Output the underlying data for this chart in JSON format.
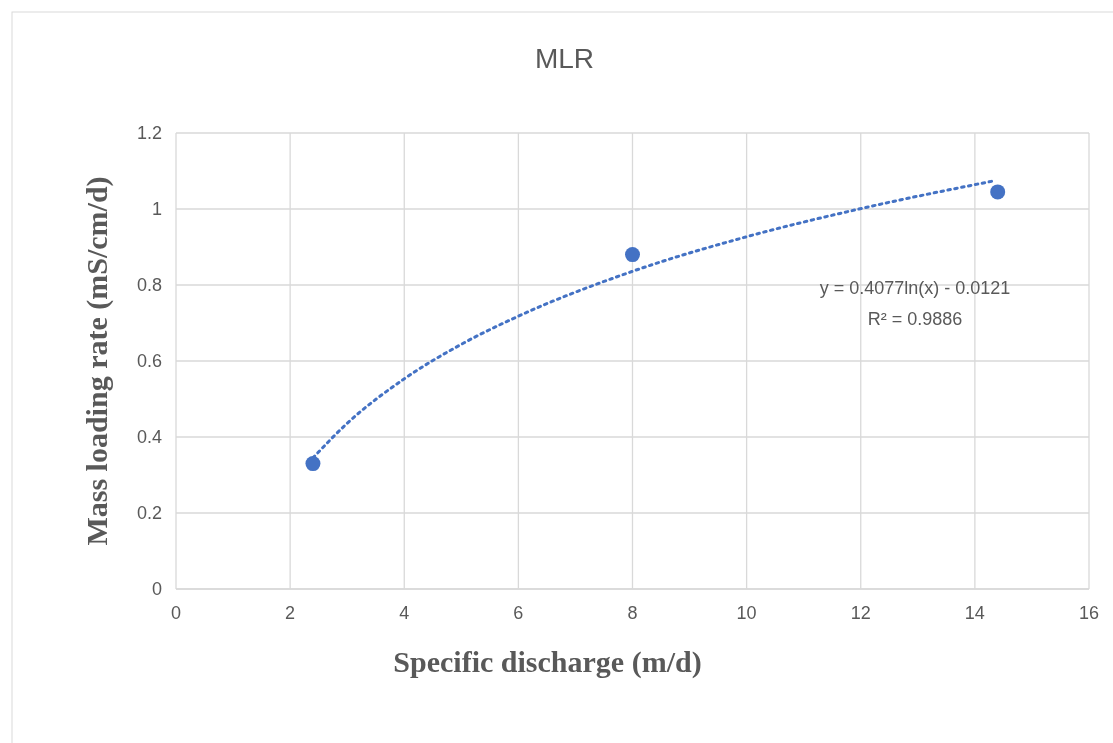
{
  "chart_data": {
    "type": "scatter",
    "title": "MLR",
    "xlabel": "Specific discharge (m/d)",
    "ylabel": "Mass loading rate (mS/cm/d)",
    "series": [
      {
        "color": "#4472c4",
        "x": [
          2.4,
          8,
          14.4
        ],
        "values": [
          0.33,
          0.88,
          1.045
        ],
        "marker": "circle"
      },
      {
        "type": "line",
        "color": "#4472c4",
        "line_style": "dotted",
        "x": [
          2.4,
          3,
          4,
          5,
          6,
          8,
          10,
          12,
          14.3
        ],
        "values": [
          0.345,
          0.436,
          0.553,
          0.644,
          0.718,
          0.836,
          0.927,
          1.001,
          1.073
        ]
      }
    ],
    "xlim": [
      0,
      16
    ],
    "xticks": [
      0,
      2,
      4,
      6,
      8,
      10,
      12,
      14,
      16
    ],
    "ylim": [
      0,
      1.2
    ],
    "yticks": [
      0,
      0.2,
      0.4,
      0.6,
      0.8,
      1,
      1.2
    ],
    "grid": true,
    "annotations": [
      "y = 0.4077ln(x) - 0.0121",
      "R² = 0.9886"
    ]
  }
}
